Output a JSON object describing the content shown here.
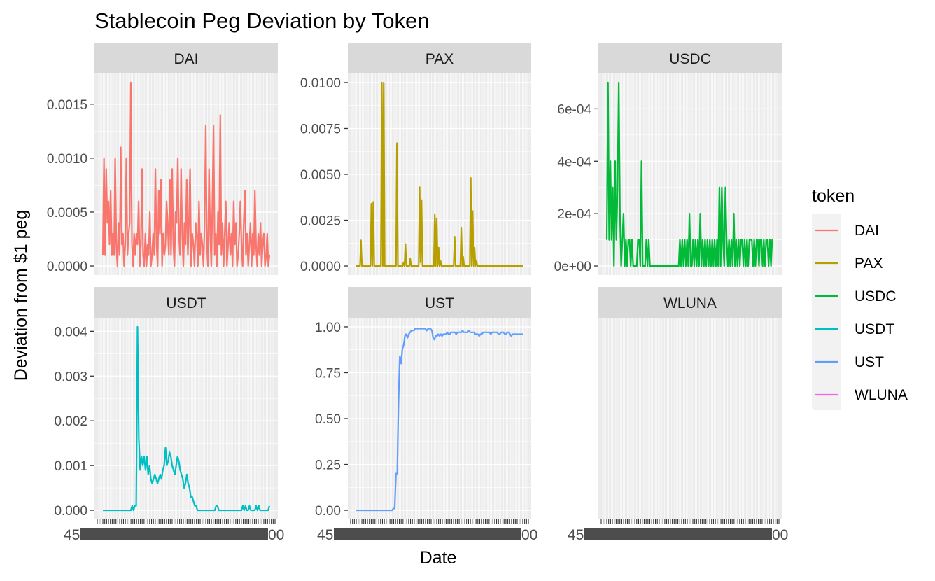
{
  "chart_data": {
    "type": "line",
    "title": "Stablecoin Peg Deviation by Token",
    "xlabel": "Date",
    "ylabel": "Deviation from $1 peg",
    "legend": {
      "title": "token",
      "placement": "right",
      "entries": [
        "DAI",
        "PAX",
        "USDC",
        "USDT",
        "UST",
        "WLUNA"
      ]
    },
    "x_tick_labels_note": "45...00",
    "panels": [
      {
        "token": "DAI",
        "color": "#F8766D",
        "ylim": [
          0,
          0.0017
        ],
        "yticks": [
          0,
          0.0005,
          0.001,
          0.0015
        ],
        "ytick_labels": [
          "0.0000",
          "0.0005",
          "0.0010",
          "0.0015"
        ],
        "values": [
          0.0001,
          0.001,
          0.0001,
          0.0009,
          0.0004,
          0.0006,
          0.0002,
          0.0007,
          0.0001,
          0.0003,
          0.0001,
          0.001,
          0.0002,
          0.0,
          0.0004,
          0.0001,
          0.0011,
          0.0002,
          0.0003,
          0.0,
          0.0002,
          0.001,
          0.0001,
          0.0003,
          0.0004,
          0.0017,
          0.0002,
          0.0,
          0.0003,
          0.0001,
          0.0003,
          0.0002,
          0.0006,
          0.0,
          0.0002,
          0.0009,
          0.0001,
          0.0,
          0.0003,
          0.0,
          0.0002,
          0.0001,
          0.0005,
          0.0,
          0.0001,
          0.0003,
          0.0001,
          0.0009,
          0.0002,
          0.0,
          0.0007,
          0.0003,
          0.0008,
          0.0,
          0.0003,
          0.0001,
          0.0002,
          0.0006,
          0.0004,
          0.0001,
          0.0008,
          0.0001,
          0.0009,
          0.0002,
          0.0,
          0.0005,
          0.0004,
          0.001,
          0.0003,
          0.0001,
          0.0009,
          0.0003,
          0.0,
          0.0004,
          0.0002,
          0.0008,
          0.0001,
          0.0004,
          0.0009,
          0.0,
          0.0003,
          0.0002,
          0.0,
          0.0004,
          0.0003,
          0.0,
          0.0006,
          0.0001,
          0.0003,
          0.0002,
          0.0,
          0.0004,
          0.0013,
          0.0002,
          0.0,
          0.0009,
          0.0003,
          0.0,
          0.0006,
          0.0013,
          0.0001,
          0.0003,
          0.0,
          0.0005,
          0.0002,
          0.0014,
          0.0001,
          0.0004,
          0.0,
          0.0003,
          0.0006,
          0.0,
          0.0002,
          0.0004,
          0.0001,
          0.0003,
          0.0,
          0.0006,
          0.0002,
          0.0004,
          0.0,
          0.0001,
          0.0003,
          0.0006,
          0.0002,
          0.0,
          0.0004,
          0.0007,
          0.0001,
          0.0003,
          0.0,
          0.0002,
          0.0004,
          0.0,
          0.0003,
          0.0001,
          0.0007,
          0.0002,
          0.0,
          0.0003,
          0.0001,
          0.0004,
          0.0,
          0.0002,
          0.0003,
          0.0,
          0.0001,
          0.0003,
          0.0,
          0.0001
        ]
      },
      {
        "token": "PAX",
        "color": "#B79F00",
        "ylim": [
          0,
          0.01
        ],
        "yticks": [
          0,
          0.0025,
          0.005,
          0.0075,
          0.01
        ],
        "ytick_labels": [
          "0.0000",
          "0.0025",
          "0.0050",
          "0.0075",
          "0.0100"
        ],
        "values": [
          0.0,
          0.0,
          0.0,
          0.0,
          0.0,
          0.0014,
          0.0,
          0.0,
          0.0,
          0.0,
          0.0,
          0.0,
          0.0,
          0.0,
          0.0,
          0.0,
          0.0034,
          0.0,
          0.0035,
          0.0,
          0.0,
          0.0,
          0.0,
          0.0,
          0.0,
          0.0,
          0.0,
          0.01,
          0.0,
          0.01,
          0.0,
          0.0,
          0.0,
          0.0,
          0.0,
          0.0,
          0.0,
          0.0,
          0.0,
          0.0,
          0.0,
          0.0,
          0.0,
          0.0067,
          0.0,
          0.0,
          0.0,
          0.0,
          0.0,
          0.0,
          0.0002,
          0.0,
          0.0012,
          0.0,
          0.0,
          0.0,
          0.0,
          0.0004,
          0.0,
          0.0,
          0.0,
          0.0,
          0.0,
          0.0,
          0.0,
          0.0,
          0.0,
          0.0043,
          0.0002,
          0.0036,
          0.0,
          0.0,
          0.0,
          0.0,
          0.0,
          0.0,
          0.0,
          0.0,
          0.0,
          0.0,
          0.0,
          0.0,
          0.0,
          0.0028,
          0.0,
          0.0026,
          0.0,
          0.001,
          0.0,
          0.0003,
          0.0,
          0.0,
          0.0,
          0.0,
          0.0,
          0.0,
          0.0,
          0.0,
          0.0,
          0.0,
          0.0,
          0.0,
          0.0,
          0.0,
          0.0016,
          0.0,
          0.0,
          0.0,
          0.0,
          0.0,
          0.0,
          0.0021,
          0.0,
          0.0005,
          0.0,
          0.0,
          0.0,
          0.0,
          0.0,
          0.0,
          0.0,
          0.0048,
          0.0,
          0.003,
          0.0,
          0.001,
          0.0,
          0.0003,
          0.0,
          0.0,
          0.0,
          0.0,
          0.0,
          0.0,
          0.0,
          0.0,
          0.0,
          0.0,
          0.0,
          0.0,
          0.0,
          0.0,
          0.0,
          0.0,
          0.0,
          0.0,
          0.0,
          0.0,
          0.0,
          0.0,
          0.0,
          0.0,
          0.0,
          0.0,
          0.0,
          0.0,
          0.0,
          0.0,
          0.0,
          0.0,
          0.0,
          0.0,
          0.0,
          0.0,
          0.0,
          0.0,
          0.0,
          0.0,
          0.0,
          0.0,
          0.0,
          0.0,
          0.0,
          0.0,
          0.0,
          0.0,
          0.0
        ]
      },
      {
        "token": "USDC",
        "color": "#00BA38",
        "ylim": [
          0,
          0.0007
        ],
        "yticks": [
          0,
          0.0002,
          0.0004,
          0.0006
        ],
        "ytick_labels": [
          "0e+00",
          "2e-04",
          "4e-04",
          "6e-04"
        ],
        "values": [
          0.0001,
          0.0007,
          0.0001,
          0.0004,
          0.0001,
          0.0003,
          0.0,
          0.0004,
          0.0001,
          0.0003,
          0.0007,
          0.0002,
          0.0,
          0.0001,
          0.0002,
          0.0,
          0.0001,
          0.0,
          0.0001,
          0.0001,
          0.0,
          0.0001,
          0.0,
          0.0,
          0.0,
          0.0,
          0.0001,
          0.0001,
          0.0,
          0.0004,
          0.0,
          0.0,
          0.0,
          0.0001,
          0.0,
          0.0001,
          0.0,
          0.0,
          0.0,
          0.0,
          0.0,
          0.0,
          0.0,
          0.0,
          0.0,
          0.0,
          0.0,
          0.0,
          0.0,
          0.0,
          0.0,
          0.0,
          0.0,
          0.0,
          0.0,
          0.0,
          0.0,
          0.0,
          0.0,
          0.0,
          0.0,
          0.0001,
          0.0,
          0.0001,
          0.0,
          0.0001,
          0.0,
          0.0001,
          0.0,
          0.0002,
          0.0,
          0.0,
          0.0001,
          0.0,
          0.0001,
          0.0,
          0.0001,
          0.0,
          0.0002,
          0.0,
          0.0001,
          0.0,
          0.0001,
          0.0,
          0.0001,
          0.0,
          0.0001,
          0.0,
          0.0001,
          0.0,
          0.0001,
          0.0,
          0.0001,
          0.0,
          0.0003,
          0.0,
          0.0003,
          0.0001,
          0.0,
          0.0003,
          0.0001,
          0.0,
          0.0001,
          0.0,
          0.0001,
          0.0,
          0.0002,
          0.0,
          0.0001,
          0.0,
          0.0001,
          0.0,
          0.0001,
          0.0001,
          0.0,
          0.0001,
          0.0,
          0.0001,
          0.0,
          0.0001,
          0.0001,
          0.0001,
          0.0,
          0.0001,
          0.0,
          0.0001,
          0.0001,
          0.0,
          0.0001,
          0.0001,
          0.0,
          0.0001,
          0.0,
          0.0001,
          0.0001,
          0.0,
          0.0001,
          0.0,
          0.0001,
          0.0001
        ]
      },
      {
        "token": "USDT",
        "color": "#00BFC4",
        "ylim": [
          0,
          0.0041
        ],
        "yticks": [
          0,
          0.001,
          0.002,
          0.003,
          0.004
        ],
        "ytick_labels": [
          "0.000",
          "0.001",
          "0.002",
          "0.003",
          "0.004"
        ],
        "values": [
          0.0,
          0.0,
          0.0,
          0.0,
          0.0,
          0.0,
          0.0,
          0.0,
          0.0,
          0.0,
          0.0,
          0.0,
          0.0,
          0.0,
          0.0,
          0.0,
          0.0,
          0.0,
          0.0,
          0.0,
          0.0,
          0.0,
          0.0001,
          0.0,
          0.0001,
          0.0001,
          0.0041,
          0.0016,
          0.0009,
          0.0012,
          0.001,
          0.0012,
          0.0009,
          0.0012,
          0.0008,
          0.001,
          0.0007,
          0.0006,
          0.0007,
          0.0008,
          0.0007,
          0.0006,
          0.0007,
          0.0008,
          0.0007,
          0.0009,
          0.001,
          0.0014,
          0.001,
          0.0011,
          0.0013,
          0.0012,
          0.001,
          0.0009,
          0.0008,
          0.001,
          0.0012,
          0.0011,
          0.0009,
          0.0008,
          0.0007,
          0.0005,
          0.0006,
          0.0008,
          0.0006,
          0.0005,
          0.0003,
          0.0003,
          0.0002,
          0.0001,
          0.0001,
          0.0,
          0.0,
          0.0,
          0.0,
          0.0,
          0.0,
          0.0,
          0.0,
          0.0,
          0.0,
          0.0,
          0.0,
          0.0,
          0.0,
          0.0001,
          0.0001,
          0.0,
          0.0,
          0.0,
          0.0,
          0.0,
          0.0,
          0.0,
          0.0,
          0.0,
          0.0,
          0.0,
          0.0,
          0.0,
          0.0,
          0.0,
          0.0,
          0.0,
          0.0,
          0.0001,
          0.0,
          0.0001,
          0.0,
          0.0,
          0.0001,
          0.0,
          0.0,
          0.0,
          0.0,
          0.0001,
          0.0,
          0.0001,
          0.0,
          0.0,
          0.0,
          0.0,
          0.0,
          0.0,
          0.0,
          0.0001
        ]
      },
      {
        "token": "UST",
        "color": "#619CFF",
        "ylim": [
          0,
          1.0
        ],
        "yticks": [
          0,
          0.25,
          0.5,
          0.75,
          1.0
        ],
        "ytick_labels": [
          "0.00",
          "0.25",
          "0.50",
          "0.75",
          "1.00"
        ],
        "values": [
          0.0,
          0.0,
          0.0,
          0.0,
          0.0,
          0.0,
          0.0,
          0.0,
          0.0,
          0.0,
          0.0,
          0.0,
          0.0,
          0.0,
          0.0,
          0.0,
          0.0,
          0.0,
          0.0,
          0.0,
          0.0,
          0.0,
          0.0,
          0.0,
          0.0,
          0.0,
          0.0,
          0.0,
          0.0,
          0.01,
          0.01,
          0.2,
          0.2,
          0.6,
          0.84,
          0.8,
          0.88,
          0.9,
          0.95,
          0.96,
          0.94,
          0.96,
          0.97,
          0.98,
          0.98,
          0.98,
          0.99,
          0.99,
          0.99,
          0.99,
          0.99,
          0.99,
          0.99,
          0.99,
          0.99,
          0.98,
          0.99,
          0.99,
          0.99,
          0.98,
          0.94,
          0.93,
          0.95,
          0.95,
          0.96,
          0.95,
          0.96,
          0.95,
          0.96,
          0.96,
          0.96,
          0.97,
          0.96,
          0.96,
          0.97,
          0.97,
          0.97,
          0.97,
          0.96,
          0.97,
          0.97,
          0.97,
          0.97,
          0.98,
          0.97,
          0.97,
          0.97,
          0.97,
          0.98,
          0.97,
          0.97,
          0.97,
          0.97,
          0.96,
          0.96,
          0.96,
          0.95,
          0.96,
          0.96,
          0.97,
          0.97,
          0.97,
          0.97,
          0.97,
          0.97,
          0.96,
          0.97,
          0.97,
          0.97,
          0.97,
          0.97,
          0.96,
          0.96,
          0.97,
          0.97,
          0.97,
          0.96,
          0.96,
          0.97,
          0.97,
          0.96,
          0.95,
          0.96,
          0.96,
          0.96,
          0.96,
          0.96,
          0.96,
          0.96,
          0.96,
          0.96
        ]
      },
      {
        "token": "WLUNA",
        "color": "#F564E3",
        "ylim": [
          0,
          1.0
        ],
        "yticks": [],
        "ytick_labels": [],
        "values": []
      }
    ]
  }
}
